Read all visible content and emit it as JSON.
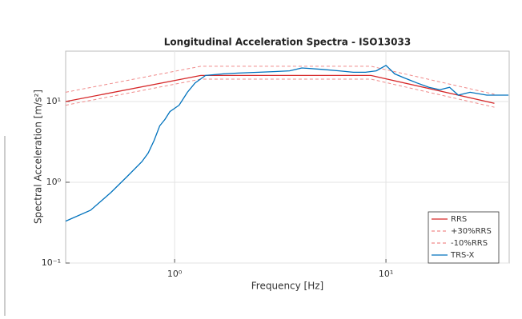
{
  "chart_data": {
    "type": "line",
    "title": "Longitudinal Acceleration Spectra - ISO13033",
    "xlabel": "Frequency [Hz]",
    "ylabel": "Spectral Acceleration [m/s²]",
    "xscale": "log",
    "yscale": "log",
    "grid": true,
    "legend": "lower right",
    "xlim": [
      0.305,
      38.3
    ],
    "ylim": [
      0.1,
      42
    ],
    "xticks": [
      {
        "value": 1,
        "label": "10⁰"
      },
      {
        "value": 10,
        "label": "10¹"
      }
    ],
    "yticks": [
      {
        "value": 0.1,
        "label": "10⁻¹"
      },
      {
        "value": 1,
        "label": "10⁰"
      },
      {
        "value": 10,
        "label": "10¹"
      }
    ],
    "series": [
      {
        "name": "RRS",
        "color": "#d62728",
        "dash": false,
        "x": [
          0.305,
          1.33,
          8.5,
          32.6
        ],
        "values": [
          10,
          21,
          21,
          9.5
        ]
      },
      {
        "name": "+30%RRS",
        "color": "#f08a8a",
        "dash": true,
        "x": [
          0.305,
          1.33,
          8.5,
          32.6
        ],
        "values": [
          13,
          27.3,
          27.3,
          12.3
        ]
      },
      {
        "name": "-10%RRS",
        "color": "#f08a8a",
        "dash": true,
        "x": [
          0.305,
          1.33,
          8.5,
          32.6
        ],
        "values": [
          9,
          18.9,
          18.9,
          8.5
        ]
      },
      {
        "name": "TRS-X",
        "color": "#0072bd",
        "dash": false,
        "x": [
          0.305,
          0.4,
          0.5,
          0.6,
          0.7,
          0.75,
          0.8,
          0.85,
          0.9,
          0.95,
          1.05,
          1.15,
          1.25,
          1.4,
          1.7,
          2,
          2.5,
          3,
          3.5,
          4,
          5,
          6,
          7,
          8,
          9,
          10,
          11,
          12,
          14,
          16,
          18,
          20,
          22,
          25,
          30,
          38
        ],
        "values": [
          0.33,
          0.45,
          0.75,
          1.2,
          1.8,
          2.3,
          3.3,
          5,
          6,
          7.5,
          9,
          13,
          17,
          21,
          22,
          22.5,
          23,
          23.5,
          24,
          26,
          25,
          24,
          23,
          23,
          24,
          28,
          22,
          20,
          17,
          15,
          14,
          15,
          12,
          13,
          12,
          12
        ]
      }
    ]
  }
}
